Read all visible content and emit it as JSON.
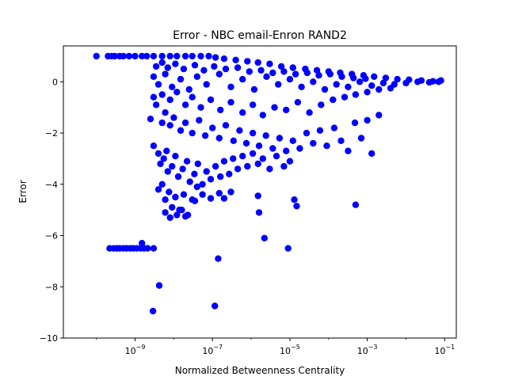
{
  "chart_data": {
    "type": "scatter",
    "title": "Error - NBC email-Enron RAND2",
    "xlabel": "Normalized Betweenness Centrality",
    "ylabel": "Error",
    "xscale": "log",
    "xlim": [
      1.4e-11,
      0.2
    ],
    "ylim": [
      -10,
      1.4
    ],
    "xticks": [
      {
        "value": 1e-09,
        "base": "10",
        "exp": "−9"
      },
      {
        "value": 1e-07,
        "base": "10",
        "exp": "−7"
      },
      {
        "value": 1e-05,
        "base": "10",
        "exp": "−5"
      },
      {
        "value": 0.001,
        "base": "10",
        "exp": "−3"
      },
      {
        "value": 0.1,
        "base": "10",
        "exp": "−1"
      }
    ],
    "yticks": [
      {
        "value": 0,
        "label": "0"
      },
      {
        "value": -2,
        "label": "−2"
      },
      {
        "value": -4,
        "label": "−4"
      },
      {
        "value": -6,
        "label": "−6"
      },
      {
        "value": -8,
        "label": "−8"
      },
      {
        "value": -10,
        "label": "−10"
      }
    ],
    "marker_color": "#0000ff",
    "grid": false,
    "legend": "none",
    "series": [
      {
        "points": [
          [
            1e-10,
            1.0
          ],
          [
            2e-10,
            1.0
          ],
          [
            2.5e-10,
            1.0
          ],
          [
            3e-10,
            1.0
          ],
          [
            4e-10,
            1.0
          ],
          [
            5e-10,
            1.0
          ],
          [
            7e-10,
            1.0
          ],
          [
            1e-09,
            1.0
          ],
          [
            1.5e-09,
            1.0
          ],
          [
            2e-09,
            1.0
          ],
          [
            3e-09,
            1.0
          ],
          [
            5e-09,
            1.0
          ],
          [
            8e-09,
            1.0
          ],
          [
            1.2e-08,
            1.0
          ],
          [
            2e-08,
            1.0
          ],
          [
            3e-08,
            1.0
          ],
          [
            5e-08,
            1.0
          ],
          [
            8e-08,
            1.0
          ],
          [
            1.2e-07,
            0.95
          ],
          [
            2e-07,
            0.9
          ],
          [
            4e-07,
            0.85
          ],
          [
            8e-07,
            0.8
          ],
          [
            1.5e-06,
            0.75
          ],
          [
            3e-06,
            0.7
          ],
          [
            6e-06,
            0.6
          ],
          [
            1.2e-05,
            0.55
          ],
          [
            2.5e-05,
            0.5
          ],
          [
            5e-05,
            0.45
          ],
          [
            0.0001,
            0.4
          ],
          [
            0.0002,
            0.35
          ],
          [
            0.0004,
            0.3
          ],
          [
            0.0008,
            0.25
          ],
          [
            0.0015,
            0.2
          ],
          [
            0.003,
            0.15
          ],
          [
            0.006,
            0.1
          ],
          [
            0.012,
            0.08
          ],
          [
            0.025,
            0.05
          ],
          [
            0.05,
            0.02
          ],
          [
            0.07,
            0.0
          ],
          [
            0.08,
            0.05
          ],
          [
            3e-09,
            0.2
          ],
          [
            4e-09,
            -0.1
          ],
          [
            6e-09,
            0.3
          ],
          [
            9e-09,
            -0.2
          ],
          [
            1.5e-08,
            0.1
          ],
          [
            2.5e-08,
            -0.3
          ],
          [
            4e-08,
            0.2
          ],
          [
            7e-08,
            -0.1
          ],
          [
            1.5e-07,
            0.3
          ],
          [
            3e-07,
            -0.2
          ],
          [
            6e-07,
            0.1
          ],
          [
            1.2e-06,
            -0.3
          ],
          [
            2.5e-06,
            0.2
          ],
          [
            5e-06,
            -0.1
          ],
          [
            1e-05,
            0.1
          ],
          [
            2e-05,
            -0.2
          ],
          [
            4e-05,
            0.0
          ],
          [
            8e-05,
            -0.3
          ],
          [
            0.00016,
            -0.1
          ],
          [
            0.00032,
            -0.2
          ],
          [
            0.00064,
            0.0
          ],
          [
            0.0013,
            -0.15
          ],
          [
            0.0026,
            -0.05
          ],
          [
            0.005,
            -0.1
          ],
          [
            0.01,
            -0.05
          ],
          [
            0.02,
            0.0
          ],
          [
            0.04,
            -0.02
          ],
          [
            3.5e-09,
            0.6
          ],
          [
            5e-09,
            0.75
          ],
          [
            7e-09,
            0.55
          ],
          [
            1.1e-08,
            0.7
          ],
          [
            1.8e-08,
            0.5
          ],
          [
            3.5e-08,
            0.65
          ],
          [
            6e-08,
            0.45
          ],
          [
            1.1e-07,
            0.6
          ],
          [
            2.2e-07,
            0.5
          ],
          [
            4.5e-07,
            0.55
          ],
          [
            9e-07,
            0.4
          ],
          [
            1.8e-06,
            0.45
          ],
          [
            3.6e-06,
            0.35
          ],
          [
            7e-06,
            0.4
          ],
          [
            1.4e-05,
            0.3
          ],
          [
            2.8e-05,
            0.35
          ],
          [
            5.6e-05,
            0.25
          ],
          [
            0.00011,
            0.3
          ],
          [
            0.00022,
            0.2
          ],
          [
            0.00044,
            0.15
          ],
          [
            0.0009,
            0.12
          ],
          [
            5e-09,
            -0.5
          ],
          [
            8e-09,
            -0.7
          ],
          [
            1.2e-08,
            -0.4
          ],
          [
            2e-08,
            -0.9
          ],
          [
            3e-08,
            -0.6
          ],
          [
            5e-08,
            -1.0
          ],
          [
            9e-08,
            -0.7
          ],
          [
            1.6e-07,
            -1.1
          ],
          [
            3e-07,
            -0.8
          ],
          [
            6e-07,
            -1.2
          ],
          [
            1.1e-06,
            -0.9
          ],
          [
            2e-06,
            -1.3
          ],
          [
            4e-06,
            -1.0
          ],
          [
            8e-06,
            -1.1
          ],
          [
            1.6e-05,
            -0.8
          ],
          [
            3.2e-05,
            -1.2
          ],
          [
            6.4e-05,
            -0.9
          ],
          [
            0.00013,
            -0.7
          ],
          [
            0.00026,
            -0.6
          ],
          [
            0.0005,
            -0.5
          ],
          [
            0.001,
            -0.4
          ],
          [
            0.002,
            -0.3
          ],
          [
            0.004,
            -0.25
          ],
          [
            2.5e-09,
            -1.45
          ],
          [
            3e-09,
            -0.6
          ],
          [
            3.5e-09,
            -0.9
          ],
          [
            5e-09,
            -1.6
          ],
          [
            6e-09,
            -1.2
          ],
          [
            8e-09,
            -1.7
          ],
          [
            1e-08,
            -1.4
          ],
          [
            1.5e-08,
            -1.9
          ],
          [
            2e-08,
            -1.6
          ],
          [
            3e-08,
            -2.0
          ],
          [
            4.5e-08,
            -1.5
          ],
          [
            6.5e-08,
            -2.1
          ],
          [
            1e-07,
            -1.8
          ],
          [
            1.5e-07,
            -2.2
          ],
          [
            2.2e-07,
            -1.7
          ],
          [
            3.5e-07,
            -2.3
          ],
          [
            5e-07,
            -1.9
          ],
          [
            7.5e-07,
            -2.4
          ],
          [
            1.1e-06,
            -2.0
          ],
          [
            1.6e-06,
            -2.5
          ],
          [
            2.4e-06,
            -2.1
          ],
          [
            3.6e-06,
            -2.6
          ],
          [
            5.4e-06,
            -2.2
          ],
          [
            8e-06,
            -2.7
          ],
          [
            1.2e-05,
            -2.3
          ],
          [
            1.8e-05,
            -2.6
          ],
          [
            2.7e-05,
            -2.0
          ],
          [
            4e-05,
            -2.4
          ],
          [
            6e-05,
            -1.9
          ],
          [
            9e-05,
            -2.5
          ],
          [
            0.00014,
            -1.8
          ],
          [
            0.00021,
            -2.3
          ],
          [
            0.00032,
            -2.7
          ],
          [
            0.00048,
            -1.6
          ],
          [
            0.0007,
            -2.2
          ],
          [
            0.001,
            -1.5
          ],
          [
            0.0013,
            -2.8
          ],
          [
            0.002,
            -1.3
          ],
          [
            3e-09,
            -2.5
          ],
          [
            4e-09,
            -2.8
          ],
          [
            4.5e-09,
            -3.2
          ],
          [
            5.5e-09,
            -3.0
          ],
          [
            6.5e-09,
            -2.7
          ],
          [
            7e-09,
            -3.5
          ],
          [
            9e-09,
            -3.3
          ],
          [
            1.1e-08,
            -2.9
          ],
          [
            1.3e-08,
            -3.7
          ],
          [
            1.7e-08,
            -3.4
          ],
          [
            2.2e-08,
            -3.1
          ],
          [
            2.6e-08,
            -3.9
          ],
          [
            3.4e-08,
            -3.6
          ],
          [
            4.2e-08,
            -3.2
          ],
          [
            5.5e-08,
            -4.0
          ],
          [
            7e-08,
            -3.5
          ],
          [
            9e-08,
            -3.8
          ],
          [
            1.2e-07,
            -3.3
          ],
          [
            1.6e-07,
            -3.7
          ],
          [
            2e-07,
            -3.1
          ],
          [
            2.7e-07,
            -3.6
          ],
          [
            3.4e-07,
            -3.0
          ],
          [
            4.5e-07,
            -3.4
          ],
          [
            6e-07,
            -2.9
          ],
          [
            8e-07,
            -3.3
          ],
          [
            1.1e-06,
            -2.8
          ],
          [
            1.5e-06,
            -3.2
          ],
          [
            2e-06,
            -3.0
          ],
          [
            3e-06,
            -3.4
          ],
          [
            4.5e-06,
            -2.9
          ],
          [
            7e-06,
            -3.3
          ],
          [
            1e-05,
            -3.1
          ],
          [
            4e-09,
            -4.2
          ],
          [
            5e-09,
            -4.0
          ],
          [
            6e-09,
            -4.6
          ],
          [
            7.5e-09,
            -4.3
          ],
          [
            9e-09,
            -4.9
          ],
          [
            1.1e-08,
            -4.5
          ],
          [
            1.4e-08,
            -5.0
          ],
          [
            1.8e-08,
            -4.4
          ],
          [
            2.3e-08,
            -5.2
          ],
          [
            3e-08,
            -4.6
          ],
          [
            4e-08,
            -4.1
          ],
          [
            5.5e-08,
            -4.4
          ],
          [
            6e-09,
            -5.1
          ],
          [
            8e-09,
            -5.3
          ],
          [
            1.2e-08,
            -5.2
          ],
          [
            1.6e-08,
            -5.0
          ],
          [
            2e-08,
            -5.25
          ],
          [
            3.5e-08,
            -4.65
          ],
          [
            9e-08,
            -4.55
          ],
          [
            1.5e-07,
            -4.35
          ],
          [
            2e-07,
            -4.55
          ],
          [
            3e-07,
            -4.3
          ],
          [
            1.5e-06,
            -4.45
          ],
          [
            1.6e-06,
            -5.1
          ],
          [
            1.3e-05,
            -4.6
          ],
          [
            1.5e-05,
            -4.85
          ],
          [
            0.0005,
            -4.8
          ],
          [
            2.2e-10,
            -6.5
          ],
          [
            2.8e-10,
            -6.5
          ],
          [
            3.4e-10,
            -6.5
          ],
          [
            4e-10,
            -6.5
          ],
          [
            5e-10,
            -6.5
          ],
          [
            6e-10,
            -6.5
          ],
          [
            7.5e-10,
            -6.5
          ],
          [
            9e-10,
            -6.5
          ],
          [
            1.1e-09,
            -6.5
          ],
          [
            1.4e-09,
            -6.5
          ],
          [
            1.7e-09,
            -6.5
          ],
          [
            2.1e-09,
            -6.5
          ],
          [
            3e-09,
            -6.5
          ],
          [
            1.5e-09,
            -6.3
          ],
          [
            9e-06,
            -6.5
          ],
          [
            2.2e-06,
            -6.1
          ],
          [
            1.4e-07,
            -6.9
          ],
          [
            4.2e-09,
            -7.95
          ],
          [
            1.15e-07,
            -8.75
          ],
          [
            2.9e-09,
            -8.95
          ]
        ]
      }
    ]
  }
}
